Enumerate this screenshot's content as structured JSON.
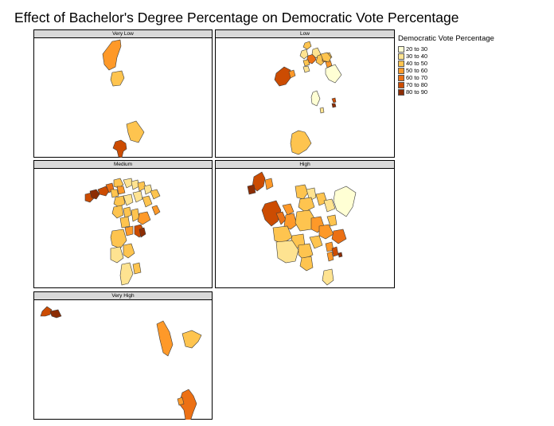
{
  "title": "Effect of Bachelor's Degree Percentage on Democratic Vote Percentage",
  "legend": {
    "title": "Democratic Vote Percentage",
    "classes": [
      {
        "label": "20 to 30",
        "color": "#ffffd4"
      },
      {
        "label": "30 to 40",
        "color": "#fee391"
      },
      {
        "label": "40 to 50",
        "color": "#fec44f"
      },
      {
        "label": "50 to 60",
        "color": "#fe9929"
      },
      {
        "label": "60 to 70",
        "color": "#ec7014"
      },
      {
        "label": "70 to 80",
        "color": "#cc4c02"
      },
      {
        "label": "80 to 90",
        "color": "#8c2d04"
      }
    ]
  },
  "panels": [
    {
      "label": "Very Low"
    },
    {
      "label": "Low"
    },
    {
      "label": "Medium"
    },
    {
      "label": "High"
    },
    {
      "label": "Very High"
    }
  ]
}
